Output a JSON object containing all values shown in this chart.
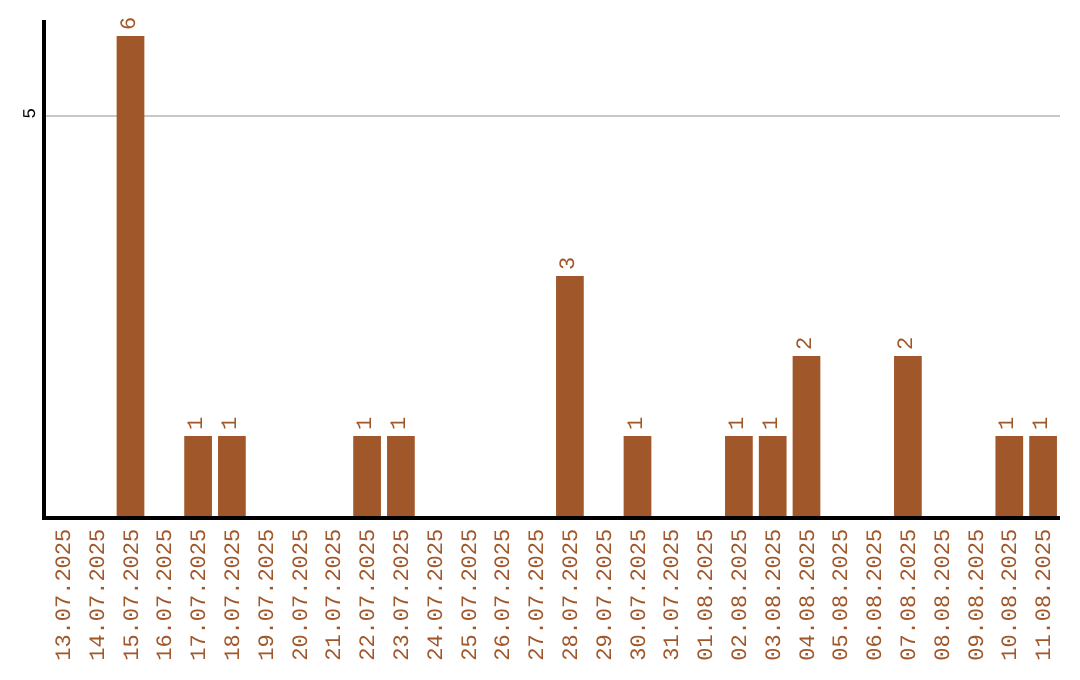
{
  "chart_data": {
    "type": "bar",
    "categories": [
      "13.07.2025",
      "14.07.2025",
      "15.07.2025",
      "16.07.2025",
      "17.07.2025",
      "18.07.2025",
      "19.07.2025",
      "20.07.2025",
      "21.07.2025",
      "22.07.2025",
      "23.07.2025",
      "24.07.2025",
      "25.07.2025",
      "26.07.2025",
      "27.07.2025",
      "28.07.2025",
      "29.07.2025",
      "30.07.2025",
      "31.07.2025",
      "01.08.2025",
      "02.08.2025",
      "03.08.2025",
      "04.08.2025",
      "05.08.2025",
      "06.08.2025",
      "07.08.2025",
      "08.08.2025",
      "09.08.2025",
      "10.08.2025",
      "11.08.2025"
    ],
    "values": [
      0,
      0,
      6,
      0,
      1,
      1,
      0,
      0,
      0,
      1,
      1,
      0,
      0,
      0,
      0,
      3,
      0,
      1,
      0,
      0,
      1,
      1,
      2,
      0,
      0,
      2,
      0,
      0,
      1,
      1
    ],
    "value_labels": [
      null,
      null,
      "6",
      null,
      "1",
      "1",
      null,
      null,
      null,
      "1",
      "1",
      null,
      null,
      null,
      null,
      "3",
      null,
      "1",
      null,
      null,
      "1",
      "1",
      "2",
      null,
      null,
      "2",
      null,
      null,
      "1",
      "1"
    ],
    "color": "#a0572a",
    "ylim": [
      0,
      6.2
    ],
    "yticks": [
      5
    ],
    "grid": "y"
  }
}
